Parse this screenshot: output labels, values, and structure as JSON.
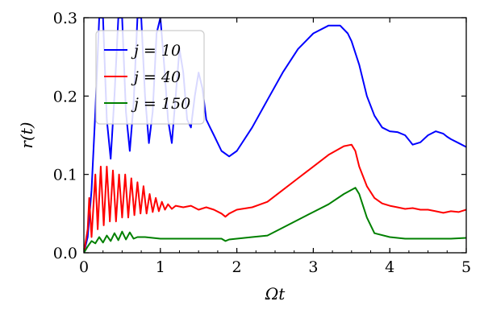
{
  "chart_data": {
    "type": "line",
    "xlabel": "Ωt",
    "ylabel": "r(t)",
    "xlim": [
      0,
      5
    ],
    "ylim": [
      0,
      0.3
    ],
    "x_ticks": [
      "0",
      "1",
      "2",
      "3",
      "4",
      "5"
    ],
    "y_ticks": [
      "0.0",
      "0.1",
      "0.2",
      "0.3"
    ],
    "grid": false,
    "legend_position": "top-left",
    "series": [
      {
        "name": "j = 10",
        "color": "#0000ff",
        "x": [
          0.0,
          0.05,
          0.1,
          0.15,
          0.2,
          0.25,
          0.3,
          0.35,
          0.4,
          0.45,
          0.5,
          0.55,
          0.6,
          0.65,
          0.7,
          0.75,
          0.8,
          0.85,
          0.9,
          0.95,
          1.0,
          1.05,
          1.1,
          1.15,
          1.2,
          1.25,
          1.3,
          1.35,
          1.4,
          1.45,
          1.5,
          1.55,
          1.6,
          1.65,
          1.7,
          1.8,
          1.9,
          2.0,
          2.2,
          2.4,
          2.6,
          2.8,
          3.0,
          3.2,
          3.35,
          3.45,
          3.5,
          3.6,
          3.7,
          3.8,
          3.9,
          4.0,
          4.1,
          4.2,
          4.3,
          4.4,
          4.5,
          4.6,
          4.7,
          4.75,
          4.8,
          4.9,
          5.0
        ],
        "y": [
          0.0,
          0.02,
          0.08,
          0.18,
          0.3,
          0.3,
          0.17,
          0.12,
          0.2,
          0.3,
          0.3,
          0.18,
          0.13,
          0.19,
          0.3,
          0.3,
          0.2,
          0.14,
          0.18,
          0.28,
          0.3,
          0.24,
          0.17,
          0.14,
          0.2,
          0.26,
          0.23,
          0.17,
          0.16,
          0.2,
          0.23,
          0.21,
          0.17,
          0.16,
          0.15,
          0.13,
          0.123,
          0.13,
          0.16,
          0.195,
          0.23,
          0.26,
          0.28,
          0.29,
          0.29,
          0.28,
          0.27,
          0.24,
          0.2,
          0.175,
          0.16,
          0.155,
          0.154,
          0.15,
          0.138,
          0.141,
          0.15,
          0.155,
          0.152,
          0.148,
          0.145,
          0.14,
          0.135
        ]
      },
      {
        "name": "j = 40",
        "color": "#ff0000",
        "x": [
          0.0,
          0.05,
          0.07,
          0.1,
          0.15,
          0.18,
          0.22,
          0.26,
          0.3,
          0.34,
          0.38,
          0.42,
          0.46,
          0.5,
          0.54,
          0.58,
          0.62,
          0.66,
          0.7,
          0.74,
          0.78,
          0.82,
          0.86,
          0.9,
          0.94,
          0.98,
          1.02,
          1.06,
          1.1,
          1.15,
          1.2,
          1.3,
          1.4,
          1.5,
          1.6,
          1.7,
          1.8,
          1.85,
          1.9,
          2.0,
          2.2,
          2.4,
          2.6,
          2.8,
          3.0,
          3.2,
          3.4,
          3.5,
          3.55,
          3.6,
          3.7,
          3.8,
          3.9,
          4.0,
          4.1,
          4.2,
          4.3,
          4.4,
          4.5,
          4.6,
          4.7,
          4.8,
          4.9,
          5.0
        ],
        "y": [
          0.0,
          0.03,
          0.07,
          0.02,
          0.1,
          0.03,
          0.11,
          0.035,
          0.11,
          0.04,
          0.105,
          0.04,
          0.1,
          0.045,
          0.1,
          0.045,
          0.095,
          0.048,
          0.09,
          0.05,
          0.085,
          0.05,
          0.075,
          0.052,
          0.07,
          0.053,
          0.065,
          0.055,
          0.062,
          0.056,
          0.06,
          0.058,
          0.06,
          0.055,
          0.058,
          0.055,
          0.05,
          0.046,
          0.05,
          0.055,
          0.058,
          0.065,
          0.08,
          0.095,
          0.11,
          0.125,
          0.136,
          0.138,
          0.13,
          0.11,
          0.085,
          0.07,
          0.063,
          0.06,
          0.058,
          0.056,
          0.057,
          0.055,
          0.055,
          0.053,
          0.051,
          0.053,
          0.052,
          0.055
        ]
      },
      {
        "name": "j = 150",
        "color": "#008000",
        "x": [
          0.0,
          0.05,
          0.1,
          0.15,
          0.2,
          0.25,
          0.3,
          0.35,
          0.4,
          0.45,
          0.5,
          0.55,
          0.6,
          0.65,
          0.7,
          0.8,
          0.9,
          1.0,
          1.2,
          1.4,
          1.6,
          1.8,
          1.85,
          1.9,
          2.0,
          2.2,
          2.4,
          2.6,
          2.8,
          3.0,
          3.2,
          3.4,
          3.55,
          3.6,
          3.7,
          3.8,
          4.0,
          4.2,
          4.4,
          4.6,
          4.8,
          5.0
        ],
        "y": [
          0.0,
          0.008,
          0.015,
          0.012,
          0.02,
          0.013,
          0.022,
          0.015,
          0.025,
          0.016,
          0.027,
          0.017,
          0.026,
          0.018,
          0.02,
          0.02,
          0.019,
          0.018,
          0.018,
          0.018,
          0.018,
          0.018,
          0.015,
          0.017,
          0.018,
          0.02,
          0.022,
          0.032,
          0.042,
          0.052,
          0.062,
          0.075,
          0.083,
          0.075,
          0.045,
          0.025,
          0.02,
          0.018,
          0.018,
          0.018,
          0.018,
          0.019
        ]
      }
    ]
  }
}
